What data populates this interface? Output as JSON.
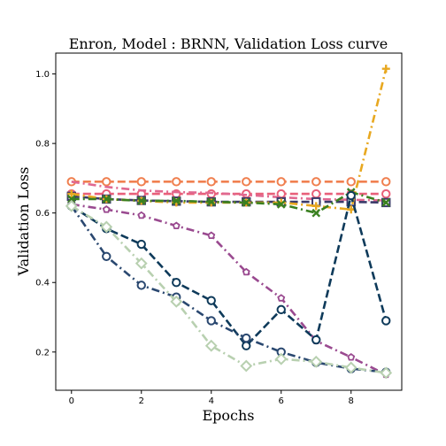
{
  "chart_data": {
    "type": "line",
    "title": "Enron, Model : BRNN, Validation Loss curve",
    "xlabel": "Epochs",
    "ylabel": "Validation Loss",
    "xlim": [
      -0.45,
      9.45
    ],
    "ylim": [
      0.09,
      1.06
    ],
    "xticks": [
      0,
      2,
      4,
      6,
      8
    ],
    "yticks": [
      0.2,
      0.4,
      0.6,
      0.8,
      1.0
    ],
    "ytick_labels": [
      "0.2",
      "0.4",
      "0.6",
      "0.8",
      "1.0"
    ],
    "grid": false,
    "legend": "none",
    "x": [
      0,
      1,
      2,
      3,
      4,
      5,
      6,
      7,
      8,
      9
    ],
    "series": [
      {
        "color": "#f08050",
        "dash": "dashed",
        "marker": "circle",
        "values": [
          0.69,
          0.69,
          0.69,
          0.69,
          0.69,
          0.69,
          0.69,
          0.69,
          0.69,
          0.69
        ]
      },
      {
        "color": "#e8607a",
        "dash": "dashed",
        "marker": "circle",
        "values": [
          0.655,
          0.655,
          0.655,
          0.655,
          0.655,
          0.655,
          0.655,
          0.655,
          0.655,
          0.655
        ]
      },
      {
        "color": "#e06890",
        "dash": "dashdot",
        "marker": "none",
        "values": [
          0.69,
          0.675,
          0.665,
          0.66,
          0.658,
          0.652,
          0.645,
          0.64,
          0.638,
          0.636
        ]
      },
      {
        "color": "#3a3a6a",
        "dash": "dashed",
        "marker": "square",
        "values": [
          0.648,
          0.64,
          0.636,
          0.634,
          0.632,
          0.632,
          0.632,
          0.632,
          0.632,
          0.63
        ]
      },
      {
        "color": "#e8a820",
        "dash": "dashdot",
        "marker": "plus",
        "values": [
          0.655,
          0.64,
          0.635,
          0.63,
          0.63,
          0.63,
          0.63,
          0.62,
          0.61,
          1.015
        ]
      },
      {
        "color": "#3a8020",
        "dash": "dashdot",
        "marker": "x",
        "values": [
          0.64,
          0.64,
          0.635,
          0.635,
          0.632,
          0.63,
          0.625,
          0.6,
          0.66,
          0.63
        ]
      },
      {
        "color": "#9a4a90",
        "dash": "dashdot",
        "marker": "pentagon",
        "values": [
          0.625,
          0.61,
          0.593,
          0.563,
          0.535,
          0.43,
          0.355,
          0.232,
          0.185,
          0.135
        ]
      },
      {
        "color": "#0e3a5a",
        "dash": "dashed",
        "marker": "circle",
        "values": [
          0.62,
          0.555,
          0.51,
          0.4,
          0.348,
          0.218,
          0.322,
          0.235,
          0.65,
          0.29
        ]
      },
      {
        "color": "#2a4870",
        "dash": "dashdot",
        "marker": "circle",
        "values": [
          0.62,
          0.475,
          0.392,
          0.358,
          0.29,
          0.24,
          0.2,
          0.17,
          0.152,
          0.142
        ]
      },
      {
        "color": "#b8d0b0",
        "dash": "dashdot",
        "marker": "diamond",
        "values": [
          0.62,
          0.56,
          0.455,
          0.345,
          0.218,
          0.16,
          0.18,
          0.172,
          0.155,
          0.14
        ]
      }
    ]
  }
}
